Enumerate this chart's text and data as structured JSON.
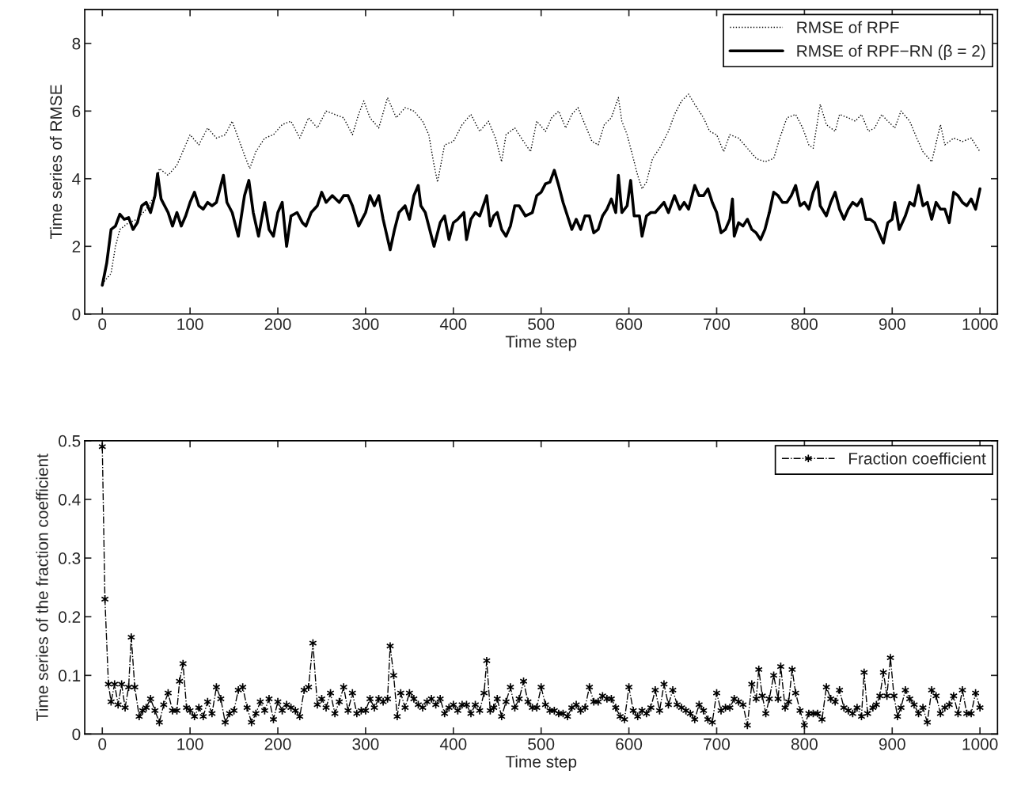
{
  "chart_data": [
    {
      "type": "line",
      "xlabel": "Time step",
      "ylabel": "Time series of RMSE",
      "xlim": [
        -20,
        1020
      ],
      "ylim": [
        0,
        9
      ],
      "xticks": [
        0,
        100,
        200,
        300,
        400,
        500,
        600,
        700,
        800,
        900,
        1000
      ],
      "yticks": [
        0,
        2,
        4,
        6,
        8
      ],
      "legend": "top right",
      "grid": false,
      "series": [
        {
          "name": "RMSE of RPF",
          "color": "#000000",
          "line_style": "dotted",
          "x": [
            0,
            10,
            15,
            20,
            30,
            40,
            50,
            60,
            65,
            75,
            85,
            95,
            100,
            110,
            120,
            130,
            140,
            148,
            155,
            162,
            168,
            175,
            185,
            195,
            205,
            215,
            225,
            235,
            245,
            255,
            265,
            275,
            285,
            292,
            298,
            305,
            315,
            325,
            335,
            345,
            355,
            365,
            372,
            378,
            382,
            390,
            400,
            410,
            420,
            430,
            440,
            448,
            455,
            460,
            470,
            480,
            488,
            495,
            505,
            512,
            520,
            528,
            535,
            542,
            550,
            558,
            565,
            572,
            580,
            588,
            592,
            598,
            605,
            610,
            615,
            620,
            627,
            635,
            645,
            652,
            660,
            668,
            675,
            685,
            692,
            700,
            708,
            715,
            725,
            735,
            745,
            755,
            765,
            772,
            780,
            790,
            798,
            805,
            810,
            818,
            825,
            835,
            840,
            850,
            858,
            865,
            873,
            880,
            888,
            895,
            903,
            910,
            920,
            928,
            935,
            945,
            955,
            960,
            970,
            980,
            990,
            1000
          ],
          "values": [
            0.9,
            1.2,
            2.0,
            2.5,
            2.7,
            2.8,
            3.1,
            3.5,
            4.3,
            4.1,
            4.4,
            5.0,
            5.3,
            5.0,
            5.5,
            5.2,
            5.3,
            5.7,
            5.2,
            4.7,
            4.3,
            4.8,
            5.2,
            5.3,
            5.6,
            5.7,
            5.2,
            5.8,
            5.5,
            6.0,
            5.9,
            5.8,
            5.3,
            5.9,
            6.3,
            5.8,
            5.5,
            6.4,
            5.8,
            6.1,
            6.0,
            5.7,
            5.3,
            4.4,
            3.9,
            5.0,
            5.1,
            5.6,
            5.9,
            5.4,
            5.7,
            5.2,
            4.5,
            5.3,
            5.5,
            5.1,
            4.8,
            5.7,
            5.4,
            5.8,
            6.0,
            5.5,
            5.9,
            6.1,
            5.6,
            5.1,
            5.0,
            5.6,
            5.8,
            6.4,
            5.7,
            5.3,
            4.6,
            4.1,
            3.7,
            3.9,
            4.6,
            4.9,
            5.4,
            5.9,
            6.3,
            6.5,
            6.2,
            5.8,
            5.4,
            5.3,
            4.8,
            5.3,
            5.2,
            4.9,
            4.6,
            4.5,
            4.6,
            5.2,
            5.8,
            5.9,
            5.5,
            5.0,
            4.9,
            6.2,
            5.6,
            5.4,
            5.9,
            5.8,
            5.7,
            5.9,
            5.4,
            5.5,
            5.9,
            5.7,
            5.5,
            6.0,
            5.7,
            5.2,
            4.8,
            4.5,
            5.6,
            5.0,
            5.2,
            5.1,
            5.2,
            4.8
          ]
        },
        {
          "name": "RMSE of RPF−RN (β = 2)",
          "color": "#000000",
          "line_style": "solid",
          "x": [
            0,
            5,
            10,
            15,
            20,
            25,
            30,
            35,
            40,
            45,
            50,
            55,
            60,
            63,
            67,
            75,
            80,
            85,
            90,
            95,
            100,
            105,
            110,
            115,
            120,
            125,
            130,
            138,
            142,
            148,
            155,
            162,
            167,
            172,
            178,
            185,
            190,
            195,
            200,
            205,
            210,
            215,
            222,
            228,
            232,
            238,
            245,
            250,
            255,
            262,
            270,
            275,
            280,
            285,
            292,
            300,
            305,
            310,
            315,
            320,
            328,
            333,
            338,
            345,
            350,
            355,
            360,
            363,
            368,
            372,
            378,
            385,
            390,
            395,
            400,
            405,
            412,
            415,
            420,
            425,
            430,
            438,
            442,
            446,
            450,
            455,
            460,
            465,
            470,
            475,
            482,
            490,
            495,
            500,
            505,
            510,
            515,
            520,
            525,
            530,
            535,
            540,
            545,
            550,
            555,
            560,
            565,
            570,
            575,
            580,
            585,
            588,
            592,
            598,
            602,
            606,
            612,
            615,
            620,
            625,
            630,
            640,
            645,
            652,
            658,
            663,
            668,
            675,
            680,
            685,
            690,
            695,
            700,
            705,
            710,
            715,
            718,
            720,
            725,
            730,
            735,
            740,
            745,
            750,
            755,
            760,
            765,
            770,
            775,
            780,
            785,
            790,
            795,
            800,
            805,
            810,
            815,
            818,
            825,
            830,
            835,
            840,
            845,
            850,
            855,
            860,
            865,
            870,
            875,
            880,
            885,
            890,
            895,
            900,
            903,
            908,
            915,
            920,
            925,
            930,
            935,
            940,
            945,
            950,
            955,
            960,
            965,
            970,
            975,
            980,
            985,
            990,
            995,
            1000
          ],
          "values": [
            0.85,
            1.5,
            2.5,
            2.6,
            2.95,
            2.8,
            2.85,
            2.5,
            2.7,
            3.2,
            3.3,
            3.0,
            3.5,
            4.15,
            3.4,
            3.0,
            2.6,
            3.0,
            2.6,
            2.9,
            3.3,
            3.6,
            3.2,
            3.1,
            3.3,
            3.2,
            3.3,
            4.1,
            3.3,
            3.0,
            2.3,
            3.5,
            3.95,
            3.0,
            2.3,
            3.3,
            2.5,
            2.3,
            3.0,
            3.3,
            2.0,
            2.9,
            3.0,
            2.7,
            2.6,
            3.0,
            3.2,
            3.6,
            3.3,
            3.5,
            3.3,
            3.5,
            3.5,
            3.2,
            2.6,
            3.0,
            3.5,
            3.2,
            3.5,
            2.8,
            1.9,
            2.5,
            3.0,
            3.2,
            2.8,
            3.5,
            3.8,
            3.2,
            3.0,
            2.6,
            2.0,
            2.7,
            2.9,
            2.2,
            2.7,
            2.8,
            3.0,
            2.2,
            2.8,
            3.0,
            2.9,
            3.5,
            2.6,
            2.9,
            3.0,
            2.5,
            2.3,
            2.6,
            3.2,
            3.2,
            2.9,
            3.0,
            3.5,
            3.6,
            3.85,
            3.9,
            4.25,
            3.8,
            3.3,
            2.9,
            2.5,
            2.8,
            2.5,
            2.9,
            2.9,
            2.4,
            2.5,
            2.9,
            3.1,
            3.4,
            3.0,
            4.1,
            3.0,
            3.2,
            3.95,
            2.9,
            2.9,
            2.3,
            2.9,
            3.0,
            3.0,
            3.3,
            3.0,
            3.5,
            3.1,
            3.3,
            3.1,
            3.8,
            3.5,
            3.5,
            3.7,
            3.3,
            3.0,
            2.4,
            2.5,
            2.8,
            3.4,
            2.3,
            2.7,
            2.6,
            2.8,
            2.5,
            2.4,
            2.2,
            2.5,
            3.0,
            3.6,
            3.5,
            3.3,
            3.3,
            3.5,
            3.8,
            3.2,
            3.3,
            3.1,
            3.6,
            3.9,
            3.2,
            2.9,
            3.3,
            3.6,
            3.1,
            2.8,
            3.1,
            3.3,
            3.2,
            3.4,
            2.8,
            2.8,
            2.7,
            2.4,
            2.1,
            2.7,
            2.8,
            3.3,
            2.5,
            2.9,
            3.3,
            3.2,
            3.8,
            3.2,
            3.3,
            2.8,
            3.3,
            3.1,
            3.1,
            2.7,
            3.6,
            3.5,
            3.3,
            3.2,
            3.4,
            3.1,
            3.7
          ]
        }
      ]
    },
    {
      "type": "line",
      "xlabel": "Time step",
      "ylabel": "Time series of the fraction coefficient",
      "xlim": [
        -20,
        1020
      ],
      "ylim": [
        0,
        0.5
      ],
      "xticks": [
        0,
        100,
        200,
        300,
        400,
        500,
        600,
        700,
        800,
        900,
        1000
      ],
      "yticks": [
        0,
        0.1,
        0.2,
        0.3,
        0.4,
        0.5
      ],
      "legend": "top right",
      "grid": false,
      "series": [
        {
          "name": "Fraction coefficient",
          "color": "#000000",
          "line_style": "dashdot",
          "marker": "cross",
          "x": [
            0,
            3,
            7,
            10,
            14,
            18,
            22,
            26,
            30,
            33,
            37,
            42,
            46,
            50,
            55,
            60,
            65,
            70,
            75,
            80,
            85,
            88,
            92,
            96,
            100,
            105,
            110,
            115,
            120,
            125,
            130,
            135,
            140,
            145,
            150,
            155,
            160,
            165,
            170,
            175,
            180,
            185,
            190,
            195,
            200,
            205,
            210,
            215,
            220,
            225,
            230,
            235,
            240,
            245,
            250,
            255,
            260,
            265,
            270,
            275,
            280,
            285,
            290,
            295,
            300,
            305,
            310,
            315,
            320,
            325,
            328,
            332,
            336,
            340,
            345,
            350,
            355,
            360,
            365,
            370,
            375,
            380,
            385,
            390,
            395,
            400,
            405,
            410,
            415,
            420,
            425,
            430,
            435,
            438,
            442,
            446,
            450,
            455,
            460,
            465,
            470,
            475,
            480,
            485,
            490,
            495,
            500,
            505,
            510,
            515,
            520,
            525,
            530,
            535,
            540,
            545,
            550,
            555,
            560,
            565,
            570,
            575,
            580,
            585,
            590,
            595,
            600,
            605,
            610,
            615,
            620,
            625,
            630,
            635,
            640,
            645,
            650,
            655,
            660,
            665,
            670,
            675,
            680,
            685,
            690,
            695,
            700,
            705,
            710,
            715,
            720,
            725,
            730,
            735,
            740,
            745,
            748,
            752,
            756,
            760,
            765,
            770,
            773,
            778,
            782,
            786,
            790,
            795,
            800,
            805,
            810,
            815,
            820,
            825,
            830,
            835,
            840,
            845,
            850,
            855,
            860,
            865,
            868,
            872,
            878,
            882,
            886,
            890,
            894,
            898,
            902,
            906,
            910,
            915,
            920,
            925,
            930,
            935,
            940,
            945,
            950,
            955,
            960,
            965,
            970,
            975,
            980,
            985,
            990,
            995,
            1000
          ],
          "values": [
            0.49,
            0.23,
            0.085,
            0.055,
            0.085,
            0.05,
            0.085,
            0.045,
            0.08,
            0.165,
            0.08,
            0.03,
            0.04,
            0.045,
            0.06,
            0.04,
            0.02,
            0.05,
            0.07,
            0.04,
            0.04,
            0.09,
            0.12,
            0.045,
            0.04,
            0.03,
            0.045,
            0.03,
            0.055,
            0.035,
            0.08,
            0.06,
            0.02,
            0.035,
            0.04,
            0.075,
            0.08,
            0.045,
            0.02,
            0.035,
            0.055,
            0.04,
            0.06,
            0.025,
            0.055,
            0.04,
            0.05,
            0.045,
            0.04,
            0.03,
            0.075,
            0.08,
            0.155,
            0.05,
            0.06,
            0.045,
            0.07,
            0.035,
            0.055,
            0.08,
            0.04,
            0.07,
            0.035,
            0.04,
            0.04,
            0.06,
            0.045,
            0.06,
            0.055,
            0.06,
            0.15,
            0.1,
            0.03,
            0.07,
            0.045,
            0.07,
            0.06,
            0.05,
            0.045,
            0.055,
            0.06,
            0.05,
            0.06,
            0.035,
            0.045,
            0.05,
            0.04,
            0.05,
            0.05,
            0.035,
            0.05,
            0.04,
            0.07,
            0.125,
            0.04,
            0.045,
            0.06,
            0.03,
            0.055,
            0.08,
            0.045,
            0.06,
            0.09,
            0.055,
            0.045,
            0.045,
            0.08,
            0.05,
            0.04,
            0.04,
            0.035,
            0.035,
            0.03,
            0.045,
            0.05,
            0.04,
            0.045,
            0.08,
            0.055,
            0.055,
            0.065,
            0.06,
            0.06,
            0.045,
            0.03,
            0.025,
            0.08,
            0.04,
            0.03,
            0.04,
            0.035,
            0.045,
            0.075,
            0.04,
            0.085,
            0.05,
            0.075,
            0.05,
            0.045,
            0.04,
            0.035,
            0.025,
            0.05,
            0.04,
            0.025,
            0.02,
            0.07,
            0.04,
            0.045,
            0.045,
            0.06,
            0.055,
            0.05,
            0.015,
            0.085,
            0.06,
            0.11,
            0.065,
            0.035,
            0.06,
            0.1,
            0.06,
            0.115,
            0.045,
            0.055,
            0.11,
            0.07,
            0.04,
            0.015,
            0.035,
            0.035,
            0.035,
            0.025,
            0.08,
            0.06,
            0.055,
            0.075,
            0.045,
            0.04,
            0.035,
            0.045,
            0.03,
            0.105,
            0.035,
            0.045,
            0.05,
            0.065,
            0.105,
            0.065,
            0.13,
            0.065,
            0.03,
            0.045,
            0.075,
            0.06,
            0.05,
            0.035,
            0.045,
            0.02,
            0.075,
            0.065,
            0.035,
            0.045,
            0.05,
            0.065,
            0.035,
            0.075,
            0.035,
            0.035,
            0.07,
            0.045
          ]
        }
      ]
    }
  ]
}
